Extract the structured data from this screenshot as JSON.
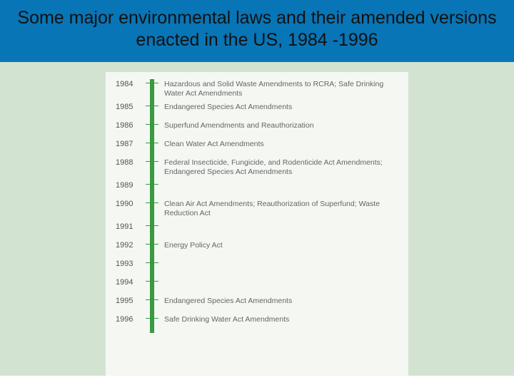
{
  "colors": {
    "header_bg": "#0875b6",
    "header_text": "#111111",
    "lower_bg": "#d2e4d1",
    "card_bg": "#f4f7f2",
    "spine": "#3a9a42",
    "tick": "#3a9a42",
    "year": "#555555",
    "label": "#666666"
  },
  "layout": {
    "row_height_single": 26,
    "row_height_double": 32,
    "lower_height": 440
  },
  "title": "Some major environmental laws and their amended versions enacted in the US, 1984 -1996",
  "timeline": [
    {
      "year": "1984",
      "label": "Hazardous and Solid Waste Amendments to RCRA; Safe Drinking Water Act Amendments",
      "lines": 2
    },
    {
      "year": "1985",
      "label": "Endangered Species Act Amendments",
      "lines": 1
    },
    {
      "year": "1986",
      "label": "Superfund Amendments and Reauthorization",
      "lines": 1
    },
    {
      "year": "1987",
      "label": "Clean Water Act Amendments",
      "lines": 1
    },
    {
      "year": "1988",
      "label": "Federal Insecticide, Fungicide, and Rodenticide Act Amendments; Endangered Species Act Amendments",
      "lines": 2
    },
    {
      "year": "1989",
      "label": "",
      "lines": 1
    },
    {
      "year": "1990",
      "label": "Clean Air Act Amendments; Reauthorization of Superfund; Waste Reduction Act",
      "lines": 2
    },
    {
      "year": "1991",
      "label": "",
      "lines": 1
    },
    {
      "year": "1992",
      "label": "Energy Policy Act",
      "lines": 1
    },
    {
      "year": "1993",
      "label": "",
      "lines": 1
    },
    {
      "year": "1994",
      "label": "",
      "lines": 1
    },
    {
      "year": "1995",
      "label": "Endangered Species Act Amendments",
      "lines": 1
    },
    {
      "year": "1996",
      "label": "Safe Drinking Water Act Amendments",
      "lines": 1
    }
  ]
}
